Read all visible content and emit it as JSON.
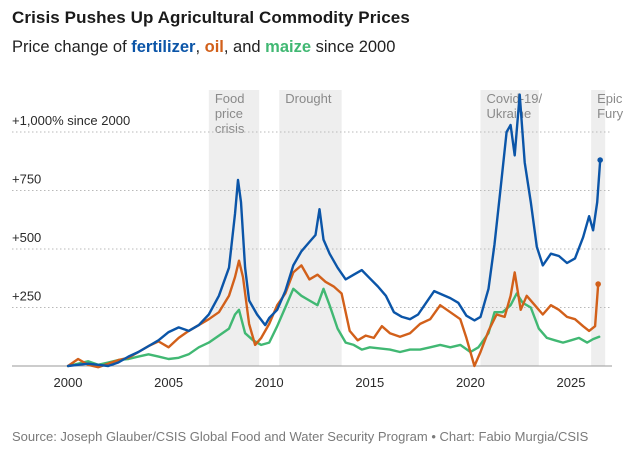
{
  "header": {
    "title": "Crisis Pushes Up Agricultural Commodity Prices",
    "subtitle_prefix": "Price change of ",
    "subtitle_sep1": ", ",
    "subtitle_sep2": ", and ",
    "subtitle_suffix": " since 2000"
  },
  "source": "Source: Joseph Glauber/CSIS Global Food and Water Security Program • Chart: Fabio Murgia/CSIS",
  "chart_data": {
    "type": "line",
    "title": "Crisis Pushes Up Agricultural Commodity Prices",
    "subtitle": "Price change of fertilizer, oil, and maize since 2000",
    "xlabel": "",
    "ylabel": "",
    "xlim": [
      2000,
      2026.6
    ],
    "ylim": [
      0,
      1150
    ],
    "x_ticks": [
      2000,
      2005,
      2010,
      2015,
      2020,
      2025
    ],
    "y_ticks": [
      {
        "value": 250,
        "label": "+250"
      },
      {
        "value": 500,
        "label": "+500"
      },
      {
        "value": 750,
        "label": "+750"
      },
      {
        "value": 1000,
        "label": "+1,000% since 2000"
      }
    ],
    "grid": "horizontal",
    "bands": [
      {
        "start": 2007.0,
        "end": 2009.5,
        "label": [
          "Food",
          "price",
          "crisis"
        ]
      },
      {
        "start": 2010.5,
        "end": 2013.6,
        "label": [
          "Drought"
        ]
      },
      {
        "start": 2020.5,
        "end": 2023.4,
        "label": [
          "Covid-19/",
          "Ukraine"
        ]
      },
      {
        "start": 2026.0,
        "end": 2026.7,
        "label": [
          "Epic",
          "Fury"
        ]
      }
    ],
    "series": [
      {
        "name": "fertilizer",
        "color": "#0b55a8",
        "points": [
          [
            2000.0,
            0
          ],
          [
            2000.5,
            5
          ],
          [
            2001.0,
            10
          ],
          [
            2001.5,
            5
          ],
          [
            2002.0,
            0
          ],
          [
            2002.5,
            15
          ],
          [
            2003.0,
            40
          ],
          [
            2003.5,
            60
          ],
          [
            2004.0,
            85
          ],
          [
            2004.5,
            110
          ],
          [
            2005.0,
            145
          ],
          [
            2005.5,
            165
          ],
          [
            2006.0,
            150
          ],
          [
            2006.5,
            175
          ],
          [
            2007.0,
            220
          ],
          [
            2007.5,
            300
          ],
          [
            2008.0,
            420
          ],
          [
            2008.3,
            650
          ],
          [
            2008.45,
            795
          ],
          [
            2008.6,
            700
          ],
          [
            2008.8,
            420
          ],
          [
            2009.0,
            280
          ],
          [
            2009.4,
            220
          ],
          [
            2009.8,
            175
          ],
          [
            2010.0,
            205
          ],
          [
            2010.4,
            240
          ],
          [
            2010.8,
            320
          ],
          [
            2011.2,
            430
          ],
          [
            2011.6,
            490
          ],
          [
            2012.0,
            530
          ],
          [
            2012.3,
            560
          ],
          [
            2012.5,
            670
          ],
          [
            2012.7,
            540
          ],
          [
            2013.0,
            480
          ],
          [
            2013.4,
            420
          ],
          [
            2013.8,
            370
          ],
          [
            2014.2,
            390
          ],
          [
            2014.6,
            410
          ],
          [
            2015.0,
            375
          ],
          [
            2015.4,
            340
          ],
          [
            2015.8,
            300
          ],
          [
            2016.2,
            230
          ],
          [
            2016.6,
            210
          ],
          [
            2017.0,
            200
          ],
          [
            2017.4,
            220
          ],
          [
            2017.8,
            270
          ],
          [
            2018.2,
            320
          ],
          [
            2018.6,
            305
          ],
          [
            2019.0,
            290
          ],
          [
            2019.4,
            270
          ],
          [
            2019.8,
            215
          ],
          [
            2020.2,
            195
          ],
          [
            2020.5,
            210
          ],
          [
            2020.9,
            330
          ],
          [
            2021.2,
            520
          ],
          [
            2021.5,
            760
          ],
          [
            2021.8,
            1000
          ],
          [
            2022.0,
            1030
          ],
          [
            2022.2,
            900
          ],
          [
            2022.45,
            1160
          ],
          [
            2022.7,
            870
          ],
          [
            2023.0,
            700
          ],
          [
            2023.3,
            510
          ],
          [
            2023.6,
            430
          ],
          [
            2024.0,
            480
          ],
          [
            2024.4,
            470
          ],
          [
            2024.8,
            440
          ],
          [
            2025.2,
            460
          ],
          [
            2025.6,
            550
          ],
          [
            2025.9,
            640
          ],
          [
            2026.1,
            580
          ],
          [
            2026.3,
            700
          ],
          [
            2026.45,
            880
          ]
        ]
      },
      {
        "name": "oil",
        "color": "#d2601a",
        "points": [
          [
            2000.0,
            0
          ],
          [
            2000.5,
            30
          ],
          [
            2001.0,
            5
          ],
          [
            2001.5,
            -5
          ],
          [
            2002.0,
            10
          ],
          [
            2002.5,
            25
          ],
          [
            2003.0,
            35
          ],
          [
            2003.5,
            60
          ],
          [
            2004.0,
            85
          ],
          [
            2004.5,
            105
          ],
          [
            2005.0,
            80
          ],
          [
            2005.5,
            120
          ],
          [
            2006.0,
            150
          ],
          [
            2006.5,
            175
          ],
          [
            2007.0,
            200
          ],
          [
            2007.5,
            230
          ],
          [
            2008.0,
            300
          ],
          [
            2008.3,
            380
          ],
          [
            2008.5,
            450
          ],
          [
            2008.7,
            380
          ],
          [
            2009.0,
            180
          ],
          [
            2009.3,
            90
          ],
          [
            2009.6,
            120
          ],
          [
            2010.0,
            180
          ],
          [
            2010.4,
            260
          ],
          [
            2010.8,
            310
          ],
          [
            2011.2,
            400
          ],
          [
            2011.6,
            430
          ],
          [
            2012.0,
            370
          ],
          [
            2012.4,
            390
          ],
          [
            2012.8,
            360
          ],
          [
            2013.2,
            340
          ],
          [
            2013.6,
            310
          ],
          [
            2014.0,
            150
          ],
          [
            2014.4,
            110
          ],
          [
            2014.8,
            130
          ],
          [
            2015.2,
            120
          ],
          [
            2015.6,
            170
          ],
          [
            2016.0,
            140
          ],
          [
            2016.5,
            125
          ],
          [
            2017.0,
            140
          ],
          [
            2017.5,
            180
          ],
          [
            2018.0,
            200
          ],
          [
            2018.5,
            260
          ],
          [
            2019.0,
            230
          ],
          [
            2019.5,
            200
          ],
          [
            2019.8,
            120
          ],
          [
            2020.2,
            0
          ],
          [
            2020.5,
            60
          ],
          [
            2020.9,
            150
          ],
          [
            2021.3,
            220
          ],
          [
            2021.7,
            210
          ],
          [
            2022.0,
            300
          ],
          [
            2022.2,
            400
          ],
          [
            2022.5,
            240
          ],
          [
            2022.8,
            300
          ],
          [
            2023.2,
            260
          ],
          [
            2023.6,
            220
          ],
          [
            2024.0,
            260
          ],
          [
            2024.4,
            240
          ],
          [
            2024.8,
            210
          ],
          [
            2025.2,
            200
          ],
          [
            2025.6,
            170
          ],
          [
            2025.9,
            150
          ],
          [
            2026.2,
            170
          ],
          [
            2026.35,
            350
          ]
        ]
      },
      {
        "name": "maize",
        "color": "#41b873",
        "points": [
          [
            2000.0,
            0
          ],
          [
            2000.5,
            10
          ],
          [
            2001.0,
            20
          ],
          [
            2001.5,
            5
          ],
          [
            2002.0,
            15
          ],
          [
            2002.5,
            25
          ],
          [
            2003.0,
            30
          ],
          [
            2003.5,
            40
          ],
          [
            2004.0,
            50
          ],
          [
            2004.5,
            40
          ],
          [
            2005.0,
            30
          ],
          [
            2005.5,
            35
          ],
          [
            2006.0,
            50
          ],
          [
            2006.5,
            80
          ],
          [
            2007.0,
            100
          ],
          [
            2007.5,
            130
          ],
          [
            2008.0,
            160
          ],
          [
            2008.3,
            220
          ],
          [
            2008.5,
            240
          ],
          [
            2008.8,
            140
          ],
          [
            2009.2,
            110
          ],
          [
            2009.6,
            90
          ],
          [
            2010.0,
            100
          ],
          [
            2010.4,
            170
          ],
          [
            2010.8,
            250
          ],
          [
            2011.2,
            330
          ],
          [
            2011.6,
            300
          ],
          [
            2012.0,
            280
          ],
          [
            2012.4,
            260
          ],
          [
            2012.7,
            330
          ],
          [
            2013.0,
            260
          ],
          [
            2013.4,
            160
          ],
          [
            2013.8,
            100
          ],
          [
            2014.2,
            90
          ],
          [
            2014.6,
            70
          ],
          [
            2015.0,
            80
          ],
          [
            2015.5,
            75
          ],
          [
            2016.0,
            70
          ],
          [
            2016.5,
            60
          ],
          [
            2017.0,
            70
          ],
          [
            2017.5,
            70
          ],
          [
            2018.0,
            80
          ],
          [
            2018.5,
            90
          ],
          [
            2019.0,
            80
          ],
          [
            2019.5,
            90
          ],
          [
            2020.0,
            60
          ],
          [
            2020.4,
            80
          ],
          [
            2020.9,
            140
          ],
          [
            2021.2,
            230
          ],
          [
            2021.6,
            230
          ],
          [
            2022.0,
            260
          ],
          [
            2022.3,
            310
          ],
          [
            2022.6,
            270
          ],
          [
            2023.0,
            250
          ],
          [
            2023.4,
            160
          ],
          [
            2023.8,
            120
          ],
          [
            2024.2,
            110
          ],
          [
            2024.6,
            100
          ],
          [
            2025.0,
            110
          ],
          [
            2025.4,
            120
          ],
          [
            2025.8,
            100
          ],
          [
            2026.1,
            115
          ],
          [
            2026.4,
            125
          ]
        ]
      }
    ]
  }
}
